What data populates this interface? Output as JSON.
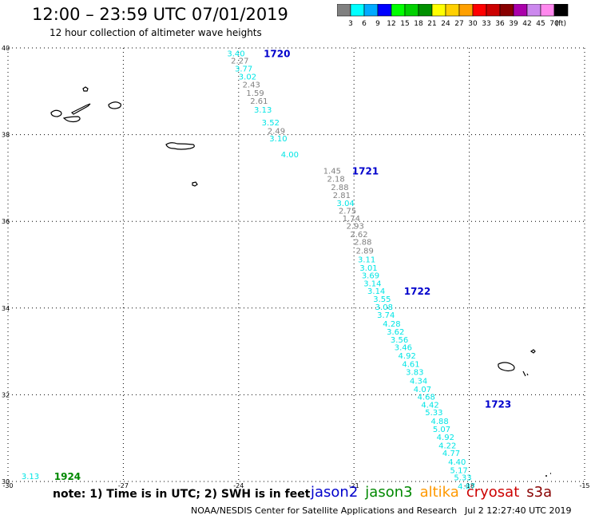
{
  "header": {
    "title": "12:00 – 23:59 UTC 07/01/2019",
    "subtitle": "12 hour collection of altimeter wave heights"
  },
  "colorbar": {
    "unit": "(ft)",
    "swatches": [
      {
        "color": "#808080",
        "label": "3"
      },
      {
        "color": "#00ffff",
        "label": "6"
      },
      {
        "color": "#00aaff",
        "label": "9"
      },
      {
        "color": "#0000ff",
        "label": "12"
      },
      {
        "color": "#00ff00",
        "label": "15"
      },
      {
        "color": "#00d000",
        "label": "18"
      },
      {
        "color": "#009000",
        "label": "21"
      },
      {
        "color": "#ffff00",
        "label": "24"
      },
      {
        "color": "#ffd000",
        "label": "27"
      },
      {
        "color": "#ffa000",
        "label": "30"
      },
      {
        "color": "#ff0000",
        "label": "33"
      },
      {
        "color": "#cc0000",
        "label": "36"
      },
      {
        "color": "#880000",
        "label": "39"
      },
      {
        "color": "#aa00aa",
        "label": "42"
      },
      {
        "color": "#cc88ee",
        "label": "45"
      },
      {
        "color": "#ff88ee",
        "label": "70"
      },
      {
        "color": "#000000",
        "label": ""
      }
    ]
  },
  "map": {
    "lat_range": [
      30,
      40
    ],
    "lon_range": [
      -30,
      -15
    ],
    "lat_labels": [
      "40",
      "38",
      "36",
      "34",
      "32",
      "30"
    ],
    "lon_labels": [
      "-30",
      "-27",
      "-24",
      "-21",
      "-18",
      "-15"
    ],
    "passes": [
      {
        "label": "1720",
        "lat": 39.88,
        "lon": -23.35
      },
      {
        "label": "1721",
        "lat": 37.17,
        "lon": -21.05
      },
      {
        "label": "1722",
        "lat": 34.4,
        "lon": -19.7
      },
      {
        "label": "1723",
        "lat": 31.8,
        "lon": -17.6
      },
      {
        "label": "1924",
        "lat": 30.13,
        "lon": -28.8
      }
    ],
    "observations": [
      {
        "lat": 39.88,
        "lon": -24.3,
        "value": "3.40",
        "color": "#00e5e5"
      },
      {
        "lat": 39.71,
        "lon": -24.2,
        "value": "2.27",
        "color": "#808080"
      },
      {
        "lat": 39.53,
        "lon": -24.1,
        "value": "3.77",
        "color": "#00e5e5"
      },
      {
        "lat": 39.35,
        "lon": -24.0,
        "value": "3.02",
        "color": "#00e5e5"
      },
      {
        "lat": 39.16,
        "lon": -23.9,
        "value": "2.43",
        "color": "#808080"
      },
      {
        "lat": 38.97,
        "lon": -23.8,
        "value": "1.59",
        "color": "#808080"
      },
      {
        "lat": 38.78,
        "lon": -23.7,
        "value": "2.61",
        "color": "#808080"
      },
      {
        "lat": 38.58,
        "lon": -23.6,
        "value": "3.13",
        "color": "#00e5e5"
      },
      {
        "lat": 38.29,
        "lon": -23.4,
        "value": "3.52",
        "color": "#00e5e5"
      },
      {
        "lat": 38.09,
        "lon": -23.25,
        "value": "2.49",
        "color": "#808080"
      },
      {
        "lat": 37.92,
        "lon": -23.2,
        "value": "3.10",
        "color": "#00e5e5"
      },
      {
        "lat": 37.55,
        "lon": -22.9,
        "value": "4.00",
        "color": "#00e5e5"
      },
      {
        "lat": 37.17,
        "lon": -21.8,
        "value": "1.45",
        "color": "#808080"
      },
      {
        "lat": 36.99,
        "lon": -21.7,
        "value": "2.18",
        "color": "#808080"
      },
      {
        "lat": 36.8,
        "lon": -21.6,
        "value": "2.88",
        "color": "#808080"
      },
      {
        "lat": 36.61,
        "lon": -21.55,
        "value": "2.81",
        "color": "#808080"
      },
      {
        "lat": 36.43,
        "lon": -21.45,
        "value": "3.04",
        "color": "#00e5e5"
      },
      {
        "lat": 36.25,
        "lon": -21.4,
        "value": "2.75",
        "color": "#808080"
      },
      {
        "lat": 36.08,
        "lon": -21.3,
        "value": "1.74",
        "color": "#808080"
      },
      {
        "lat": 35.9,
        "lon": -21.2,
        "value": "2.93",
        "color": "#808080"
      },
      {
        "lat": 35.71,
        "lon": -21.1,
        "value": "2.62",
        "color": "#808080"
      },
      {
        "lat": 35.53,
        "lon": -21.0,
        "value": "2.88",
        "color": "#808080"
      },
      {
        "lat": 35.33,
        "lon": -20.95,
        "value": "2.89",
        "color": "#808080"
      },
      {
        "lat": 35.13,
        "lon": -20.9,
        "value": "3.11",
        "color": "#00e5e5"
      },
      {
        "lat": 34.94,
        "lon": -20.85,
        "value": "3.01",
        "color": "#00e5e5"
      },
      {
        "lat": 34.76,
        "lon": -20.8,
        "value": "3.69",
        "color": "#00e5e5"
      },
      {
        "lat": 34.58,
        "lon": -20.75,
        "value": "3.14",
        "color": "#00e5e5"
      },
      {
        "lat": 34.4,
        "lon": -20.65,
        "value": "3.14",
        "color": "#00e5e5"
      },
      {
        "lat": 34.22,
        "lon": -20.5,
        "value": "3.55",
        "color": "#00e5e5"
      },
      {
        "lat": 34.03,
        "lon": -20.45,
        "value": "3.08",
        "color": "#00e5e5"
      },
      {
        "lat": 33.85,
        "lon": -20.4,
        "value": "3.74",
        "color": "#00e5e5"
      },
      {
        "lat": 33.65,
        "lon": -20.25,
        "value": "4.28",
        "color": "#00e5e5"
      },
      {
        "lat": 33.46,
        "lon": -20.15,
        "value": "3.62",
        "color": "#00e5e5"
      },
      {
        "lat": 33.28,
        "lon": -20.05,
        "value": "3.56",
        "color": "#00e5e5"
      },
      {
        "lat": 33.1,
        "lon": -19.95,
        "value": "3.46",
        "color": "#00e5e5"
      },
      {
        "lat": 32.91,
        "lon": -19.85,
        "value": "4.92",
        "color": "#00e5e5"
      },
      {
        "lat": 32.72,
        "lon": -19.75,
        "value": "4.61",
        "color": "#00e5e5"
      },
      {
        "lat": 32.53,
        "lon": -19.65,
        "value": "3.83",
        "color": "#00e5e5"
      },
      {
        "lat": 32.33,
        "lon": -19.55,
        "value": "4.34",
        "color": "#00e5e5"
      },
      {
        "lat": 32.14,
        "lon": -19.45,
        "value": "4.07",
        "color": "#00e5e5"
      },
      {
        "lat": 31.96,
        "lon": -19.35,
        "value": "4.68",
        "color": "#00e5e5"
      },
      {
        "lat": 31.78,
        "lon": -19.25,
        "value": "4.42",
        "color": "#00e5e5"
      },
      {
        "lat": 31.6,
        "lon": -19.15,
        "value": "5.33",
        "color": "#00e5e5"
      },
      {
        "lat": 31.4,
        "lon": -19.0,
        "value": "4.88",
        "color": "#00e5e5"
      },
      {
        "lat": 31.22,
        "lon": -18.95,
        "value": "5.07",
        "color": "#00e5e5"
      },
      {
        "lat": 31.03,
        "lon": -18.85,
        "value": "4.92",
        "color": "#00e5e5"
      },
      {
        "lat": 30.84,
        "lon": -18.8,
        "value": "4.22",
        "color": "#00e5e5"
      },
      {
        "lat": 30.66,
        "lon": -18.7,
        "value": "4.77",
        "color": "#00e5e5"
      },
      {
        "lat": 30.46,
        "lon": -18.55,
        "value": "4.40",
        "color": "#00e5e5"
      },
      {
        "lat": 30.27,
        "lon": -18.5,
        "value": "5.17",
        "color": "#00e5e5"
      },
      {
        "lat": 30.1,
        "lon": -18.4,
        "value": "5.33",
        "color": "#00e5e5"
      },
      {
        "lat": 29.9,
        "lon": -18.3,
        "value": "4.87",
        "color": "#00e5e5"
      },
      {
        "lat": 30.13,
        "lon": -29.65,
        "value": "3.13",
        "color": "#00e5e5"
      }
    ]
  },
  "legend": {
    "note": "note: 1) Time is in UTC; 2) SWH is in feet",
    "satellites": [
      {
        "name": "jason2",
        "color": "#0000cc"
      },
      {
        "name": "jason3",
        "color": "#008800"
      },
      {
        "name": "altika",
        "color": "#ff9900"
      },
      {
        "name": "cryosat",
        "color": "#cc0000"
      },
      {
        "name": "s3a",
        "color": "#880000"
      }
    ]
  },
  "footer": {
    "credit": "NOAA/NESDIS Center for Satellite Applications and Research",
    "timestamp": "Jul  2 12:27:40 UTC 2019"
  }
}
